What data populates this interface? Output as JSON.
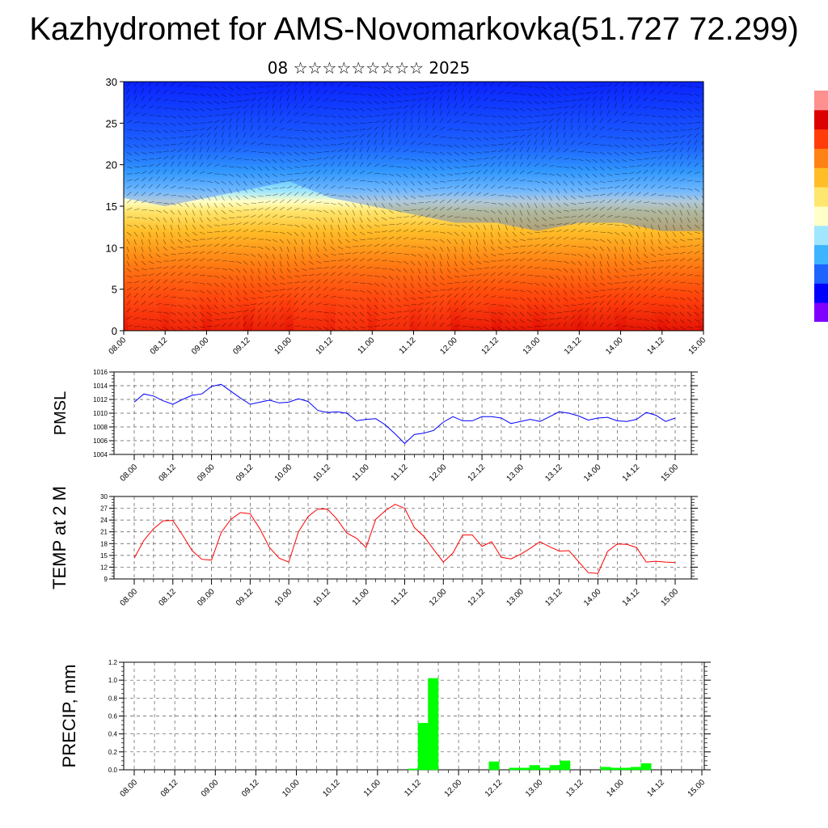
{
  "title": "Kazhydromet for AMS-Novomarkovka(51.727 72.299)",
  "subtitle": "08 ☆☆☆☆☆☆☆☆☆ 2025",
  "time_labels": [
    "08.00",
    "08.12",
    "09.00",
    "09.12",
    "10.00",
    "10.12",
    "11.00",
    "11.12",
    "12.00",
    "12.12",
    "13.00",
    "13.12",
    "14.00",
    "14.12",
    "15.00"
  ],
  "colors": {
    "pmsl_line": "#0000ff",
    "temp_line": "#ff0000",
    "precip_bar": "#00ff00",
    "grid": "#555555"
  },
  "chart_data": [
    {
      "type": "heatmap",
      "description_scale": "colour-filled height/time section with wind barbs",
      "ylim": [
        0,
        30
      ],
      "yticks": [
        0,
        5,
        10,
        15,
        20,
        25,
        30
      ],
      "x_categories": [
        "08.00",
        "08.12",
        "09.00",
        "09.12",
        "10.00",
        "10.12",
        "11.00",
        "11.12",
        "12.00",
        "12.12",
        "13.00",
        "13.12",
        "14.00",
        "14.12",
        "15.00"
      ],
      "warm_zone_top_by_time": [
        16,
        15,
        16,
        17,
        18,
        16,
        15,
        14,
        13,
        13,
        12,
        13,
        13,
        12,
        12
      ],
      "hot_core_strength_by_time": [
        0.6,
        0.75,
        0.55,
        0.45,
        0.55,
        0.9,
        0.85,
        0.8,
        0.45,
        0.4,
        0.35,
        0.35,
        0.3,
        0.3,
        0.3
      ],
      "colormap": [
        "#7f00ff",
        "#0000ff",
        "#1e64ff",
        "#3cb4ff",
        "#a0e6ff",
        "#ffffc8",
        "#ffe66e",
        "#ffbe28",
        "#ff8214",
        "#ff3c0a",
        "#dc0000"
      ],
      "grid": false,
      "legend": "colorbar-right"
    },
    {
      "type": "line",
      "ylabel": "PMSL",
      "ylim": [
        1004,
        1016
      ],
      "yticks": [
        1004,
        1006,
        1008,
        1010,
        1012,
        1014,
        1016
      ],
      "x_categories": [
        "08.00",
        "08.12",
        "09.00",
        "09.12",
        "10.00",
        "10.12",
        "11.00",
        "11.12",
        "12.00",
        "12.12",
        "13.00",
        "13.12",
        "14.00",
        "14.12",
        "15.00"
      ],
      "x": [
        0.0,
        0.25,
        0.5,
        0.75,
        1.0,
        1.25,
        1.5,
        1.75,
        2.0,
        2.25,
        2.5,
        2.75,
        3.0,
        3.25,
        3.5,
        3.75,
        4.0,
        4.25,
        4.5,
        4.75,
        5.0,
        5.25,
        5.5,
        5.75,
        6.0,
        6.25,
        6.5,
        6.75,
        7.0,
        7.25,
        7.5,
        7.75,
        8.0,
        8.25,
        8.5,
        8.75,
        9.0,
        9.25,
        9.5,
        9.75,
        10.0,
        10.25,
        10.5,
        10.75,
        11.0,
        11.25,
        11.5,
        11.75,
        12.0,
        12.25,
        12.5,
        12.75,
        13.0,
        13.25,
        13.5,
        13.75,
        14.0
      ],
      "series": [
        {
          "values": [
            1011.6,
            1012.8,
            1012.5,
            1011.8,
            1011.3,
            1012.0,
            1012.6,
            1012.8,
            1013.9,
            1014.2,
            1013.2,
            1012.2,
            1011.3,
            1011.6,
            1011.9,
            1011.5,
            1011.6,
            1012.1,
            1011.7,
            1010.4,
            1010.1,
            1010.2,
            1010.0,
            1008.9,
            1009.1,
            1009.2,
            1008.3,
            1007.0,
            1005.6,
            1006.9,
            1007.1,
            1007.5,
            1008.7,
            1009.5,
            1008.9,
            1008.9,
            1009.5,
            1009.5,
            1009.3,
            1008.5,
            1008.8,
            1009.1,
            1008.8,
            1009.5,
            1010.2,
            1010.0,
            1009.6,
            1009.0,
            1009.3,
            1009.4,
            1008.9,
            1008.8,
            1009.1,
            1010.1,
            1009.7,
            1008.8,
            1009.3
          ]
        }
      ],
      "grid": true
    },
    {
      "type": "line",
      "ylabel": "TEMP at 2 M",
      "ylim": [
        9,
        30
      ],
      "yticks": [
        9,
        12,
        15,
        18,
        21,
        24,
        27,
        30
      ],
      "x_categories": [
        "08.00",
        "08.12",
        "09.00",
        "09.12",
        "10.00",
        "10.12",
        "11.00",
        "11.12",
        "12.00",
        "12.12",
        "13.00",
        "13.12",
        "14.00",
        "14.12",
        "15.00"
      ],
      "x": [
        0.0,
        0.25,
        0.5,
        0.75,
        1.0,
        1.25,
        1.5,
        1.75,
        2.0,
        2.25,
        2.5,
        2.75,
        3.0,
        3.25,
        3.5,
        3.75,
        4.0,
        4.25,
        4.5,
        4.75,
        5.0,
        5.25,
        5.5,
        5.75,
        6.0,
        6.25,
        6.5,
        6.75,
        7.0,
        7.25,
        7.5,
        7.75,
        8.0,
        8.25,
        8.5,
        8.75,
        9.0,
        9.25,
        9.5,
        9.75,
        10.0,
        10.25,
        10.5,
        10.75,
        11.0,
        11.25,
        11.5,
        11.75,
        12.0,
        12.25,
        12.5,
        12.75,
        13.0,
        13.25,
        13.5,
        13.75,
        14.0
      ],
      "series": [
        {
          "values": [
            14.3,
            18.8,
            21.8,
            23.8,
            23.9,
            20.2,
            16.2,
            14.0,
            13.8,
            20.8,
            24.2,
            25.9,
            25.6,
            21.8,
            17.0,
            14.3,
            13.3,
            21.0,
            24.9,
            26.8,
            26.8,
            24.2,
            20.7,
            19.4,
            17.0,
            24.2,
            26.4,
            28.0,
            27.0,
            22.1,
            19.8,
            16.5,
            13.3,
            15.6,
            20.2,
            20.2,
            17.3,
            18.5,
            14.5,
            14.1,
            15.3,
            16.8,
            18.5,
            17.2,
            16.1,
            16.2,
            13.4,
            10.6,
            10.4,
            16.0,
            17.9,
            17.8,
            17.0,
            13.3,
            13.5,
            13.3,
            13.2
          ]
        }
      ],
      "grid": true
    },
    {
      "type": "bar",
      "ylabel": "PRECIP, mm",
      "ylim": [
        0,
        1.2
      ],
      "yticks": [
        0.0,
        0.2,
        0.4,
        0.6,
        0.8,
        1.0,
        1.2
      ],
      "x_categories": [
        "08.00",
        "08.12",
        "09.00",
        "09.12",
        "10.00",
        "10.12",
        "11.00",
        "11.12",
        "12.00",
        "12.12",
        "13.00",
        "13.12",
        "14.00",
        "14.12",
        "15.00"
      ],
      "x": [
        6.5,
        6.75,
        7.0,
        7.25,
        8.75,
        9.25,
        9.5,
        9.75,
        10.0,
        10.25,
        10.5,
        11.0,
        11.5,
        11.75,
        12.0,
        12.25,
        12.5
      ],
      "values": [
        0.0,
        0.01,
        0.52,
        1.02,
        0.09,
        0.02,
        0.02,
        0.05,
        0.02,
        0.05,
        0.1,
        0.0,
        0.03,
        0.02,
        0.02,
        0.03,
        0.07
      ],
      "grid": true
    }
  ]
}
